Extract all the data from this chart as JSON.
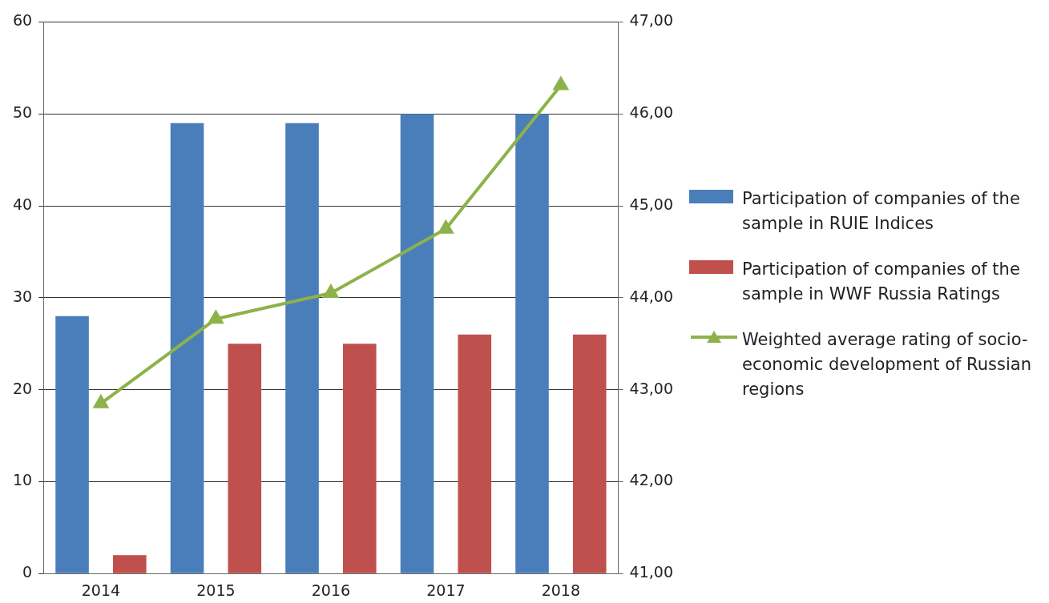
{
  "chart_data": {
    "type": "bar",
    "categories": [
      "2014",
      "2015",
      "2016",
      "2017",
      "2018"
    ],
    "series": [
      {
        "name": "Participation of companies of the sample in RUIE Indices",
        "color": "#4a7ebb",
        "values": [
          28,
          49,
          49,
          50,
          50
        ]
      },
      {
        "name": "Participation of companies of the sample in WWF Russia Ratings",
        "color": "#c0504d",
        "values": [
          2,
          25,
          25,
          26,
          26
        ]
      },
      {
        "name": "Weighted average rating of socio-economic development of Russian regions",
        "color": "#8db24a",
        "type": "line",
        "axis": "y2",
        "marker": "triangle",
        "values": [
          42.85,
          43.77,
          44.05,
          44.75,
          46.31
        ]
      }
    ],
    "ylim": [
      0,
      60
    ],
    "yticks": [
      0,
      10,
      20,
      30,
      40,
      50,
      60
    ],
    "y2lim": [
      41,
      47
    ],
    "y2ticks": [
      {
        "value": 41,
        "label": "41,00"
      },
      {
        "value": 42,
        "label": "42,00"
      },
      {
        "value": 43,
        "label": "43,00"
      },
      {
        "value": 44,
        "label": "44,00"
      },
      {
        "value": 45,
        "label": "45,00"
      },
      {
        "value": 46,
        "label": "46,00"
      },
      {
        "value": 47,
        "label": "47,00"
      }
    ],
    "grid": "y",
    "legend": "right"
  }
}
